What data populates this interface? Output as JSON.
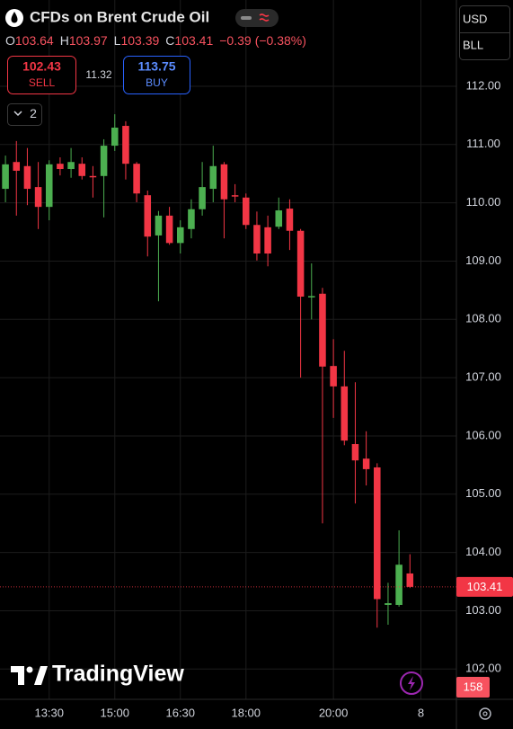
{
  "header": {
    "title": "CFDs on Brent Crude Oil",
    "ohlc_labels": [
      "O",
      "H",
      "L",
      "C"
    ],
    "change": "−0.39",
    "change_pct": "(−0.38%)"
  },
  "trade_panel": {
    "sell_price": "102.43",
    "sell_label": "SELL",
    "spread": "11.32",
    "buy_price": "113.75",
    "buy_label": "BUY"
  },
  "indicator_count": "2",
  "currency": "USD",
  "unit": "BLL",
  "volume_label": "158",
  "brand": "TradingView",
  "chart_data": {
    "type": "candlestick",
    "open": [
      110.24,
      110.7,
      110.63,
      110.27,
      109.93,
      110.67,
      110.58,
      110.67,
      110.46,
      110.46,
      110.98,
      111.32,
      110.67,
      110.13,
      109.44,
      109.78,
      109.31,
      109.55,
      109.89,
      110.24,
      110.66,
      110.13,
      110.09,
      109.62,
      109.58,
      109.59,
      109.9,
      109.52,
      108.39,
      108.44,
      107.2,
      106.85,
      105.86,
      105.61,
      105.46,
      103.1,
      103.1,
      103.64
    ],
    "high": [
      110.81,
      111.06,
      110.94,
      110.7,
      110.73,
      110.78,
      110.94,
      110.78,
      110.63,
      111.09,
      111.52,
      111.4,
      110.7,
      110.21,
      109.86,
      109.93,
      109.7,
      110.06,
      110.7,
      110.98,
      110.7,
      110.32,
      110.16,
      109.85,
      109.78,
      110.09,
      110.06,
      109.55,
      108.96,
      108.54,
      107.66,
      107.46,
      106.92,
      106.08,
      105.53,
      103.48,
      104.38,
      103.97
    ],
    "low": [
      110.01,
      109.78,
      109.96,
      109.55,
      109.7,
      110.47,
      110.43,
      110.4,
      110.09,
      109.75,
      110.89,
      110.4,
      110.01,
      109.08,
      108.31,
      109.28,
      109.13,
      109.39,
      109.78,
      110.01,
      109.39,
      110.01,
      109.55,
      109.01,
      108.91,
      109.55,
      109.19,
      107.0,
      108.0,
      104.5,
      106.31,
      105.84,
      104.84,
      105.15,
      102.71,
      102.76,
      103.07,
      103.39
    ],
    "close": [
      110.66,
      110.55,
      110.24,
      109.93,
      110.66,
      110.58,
      110.7,
      110.46,
      110.44,
      110.98,
      111.29,
      110.67,
      110.16,
      109.42,
      109.78,
      109.31,
      109.58,
      109.89,
      110.27,
      110.63,
      110.06,
      110.12,
      109.62,
      109.13,
      109.13,
      109.87,
      109.52,
      108.39,
      108.4,
      107.19,
      106.85,
      105.92,
      105.58,
      105.43,
      103.2,
      103.13,
      103.79,
      103.41
    ],
    "xlim": [
      -0.5,
      41.25
    ],
    "xticks": [
      {
        "value": 4,
        "label": "13:30"
      },
      {
        "value": 10,
        "label": "15:00"
      },
      {
        "value": 16,
        "label": "16:30"
      },
      {
        "value": 22,
        "label": "18:00"
      },
      {
        "value": 30,
        "label": "20:00"
      },
      {
        "value": 38,
        "label": "8"
      }
    ],
    "ylim": [
      101.48,
      113.48
    ],
    "yticks": [
      {
        "value": 102,
        "label": "102.00"
      },
      {
        "value": 103,
        "label": "103.00"
      },
      {
        "value": 104,
        "label": "104.00"
      },
      {
        "value": 105,
        "label": "105.00"
      },
      {
        "value": 106,
        "label": "106.00"
      },
      {
        "value": 107,
        "label": "107.00"
      },
      {
        "value": 108,
        "label": "108.00"
      },
      {
        "value": 109,
        "label": "109.00"
      },
      {
        "value": 110,
        "label": "110.00"
      },
      {
        "value": 111,
        "label": "111.00"
      },
      {
        "value": 112,
        "label": "112.00"
      }
    ],
    "up_color": "#4caf50",
    "down_color": "#f23645",
    "grid": true
  }
}
